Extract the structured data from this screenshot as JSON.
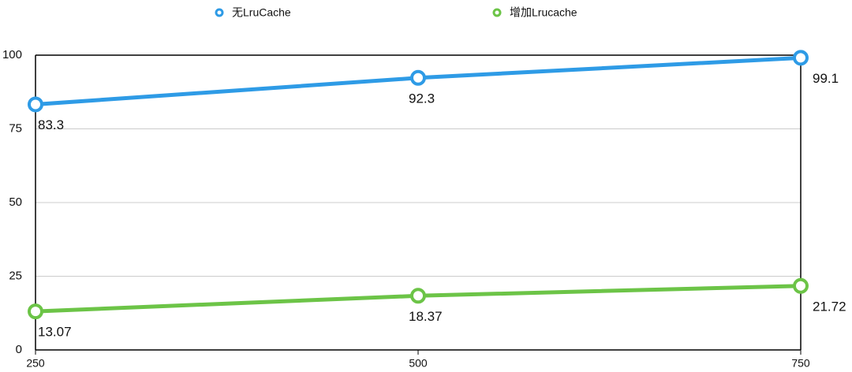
{
  "chart_data": {
    "type": "line",
    "x": [
      250,
      500,
      750
    ],
    "xlim": [
      250,
      750
    ],
    "xticks": [
      250,
      500,
      750
    ],
    "ylim": [
      0,
      100
    ],
    "yticks": [
      0,
      25,
      50,
      75,
      100
    ],
    "grid": true,
    "series": [
      {
        "name": "无LruCache",
        "color": "#2e9be6",
        "values": [
          83.3,
          92.3,
          99.1
        ]
      },
      {
        "name": "增加Lrucache",
        "color": "#6cc447",
        "values": [
          13.07,
          18.37,
          21.72
        ]
      }
    ]
  }
}
